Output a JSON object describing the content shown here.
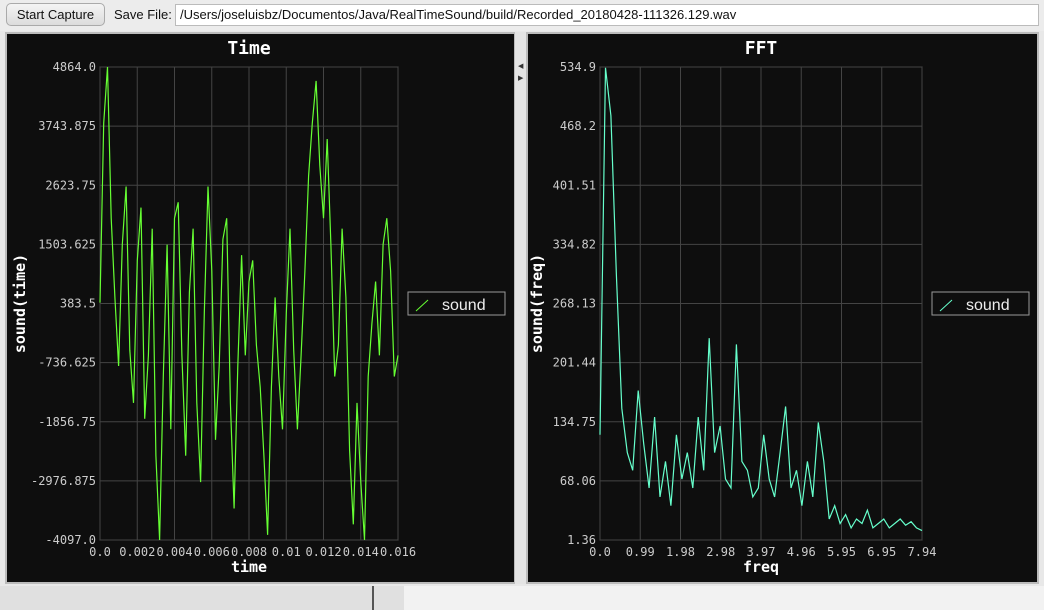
{
  "toolbar": {
    "start_capture": "Start Capture",
    "save_file_label": "Save File:",
    "save_file_value": "/Users/joseluisbz/Documentos/Java/RealTimeSound/build/Recorded_20180428-111326.129.wav"
  },
  "chart_data": [
    {
      "type": "line",
      "title": "Time",
      "xlabel": "time",
      "ylabel": "sound(time)",
      "xlim": [
        0,
        0.016
      ],
      "ylim": [
        -4097.0,
        4864.0
      ],
      "xticks": [
        "0.0",
        "0.002",
        "0.004",
        "0.006",
        "0.008",
        "0.01",
        "0.012",
        "0.014",
        "0.016"
      ],
      "yticks": [
        "4864.0",
        "3743.875",
        "2623.75",
        "1503.625",
        "383.5",
        "-736.625",
        "-1856.75",
        "-2976.875",
        "-4097.0"
      ],
      "grid": true,
      "legend": "right",
      "color": "#66ff33",
      "series": [
        {
          "name": "sound",
          "values": [
            400,
            3800,
            4864,
            2000,
            500,
            -800,
            1500,
            2600,
            -500,
            -1500,
            1200,
            2200,
            -1800,
            -600,
            1800,
            -2500,
            -4097,
            -1000,
            1500,
            -2000,
            2000,
            2300,
            -600,
            -2500,
            600,
            1800,
            -1500,
            -3000,
            200,
            2600,
            1000,
            -2200,
            -800,
            1600,
            2000,
            -1500,
            -3500,
            -800,
            1300,
            -600,
            800,
            1200,
            -400,
            -1200,
            -2500,
            -4000,
            -1200,
            500,
            -1000,
            -2000,
            200,
            1800,
            -500,
            -2000,
            -600,
            1000,
            2800,
            3800,
            4600,
            3000,
            2000,
            3500,
            1500,
            -1000,
            -400,
            1800,
            500,
            -2400,
            -3800,
            -1500,
            -3000,
            -4097,
            -1000,
            0,
            800,
            -600,
            1500,
            2000,
            1000,
            -1000,
            -600
          ]
        }
      ]
    },
    {
      "type": "line",
      "title": "FFT",
      "xlabel": "freq",
      "ylabel": "sound(freq)",
      "xlim": [
        0,
        7.94
      ],
      "ylim": [
        1.36,
        534.9
      ],
      "xticks": [
        "0.0",
        "0.99",
        "1.98",
        "2.98",
        "3.97",
        "4.96",
        "5.95",
        "6.95",
        "7.94"
      ],
      "yticks": [
        "534.9",
        "468.2",
        "401.51",
        "334.82",
        "268.13",
        "201.44",
        "134.75",
        "68.06",
        "1.36"
      ],
      "grid": true,
      "legend": "right",
      "color": "#66ffcc",
      "series": [
        {
          "name": "sound",
          "values": [
            120,
            534,
            480,
            300,
            150,
            100,
            80,
            170,
            110,
            60,
            140,
            50,
            90,
            40,
            120,
            70,
            100,
            60,
            140,
            80,
            229,
            100,
            130,
            70,
            60,
            222,
            90,
            80,
            50,
            60,
            120,
            70,
            50,
            100,
            152,
            60,
            80,
            40,
            90,
            50,
            134,
            90,
            25,
            40,
            20,
            30,
            15,
            25,
            20,
            35,
            15,
            20,
            25,
            15,
            20,
            25,
            18,
            22,
            15,
            12
          ]
        }
      ]
    }
  ]
}
